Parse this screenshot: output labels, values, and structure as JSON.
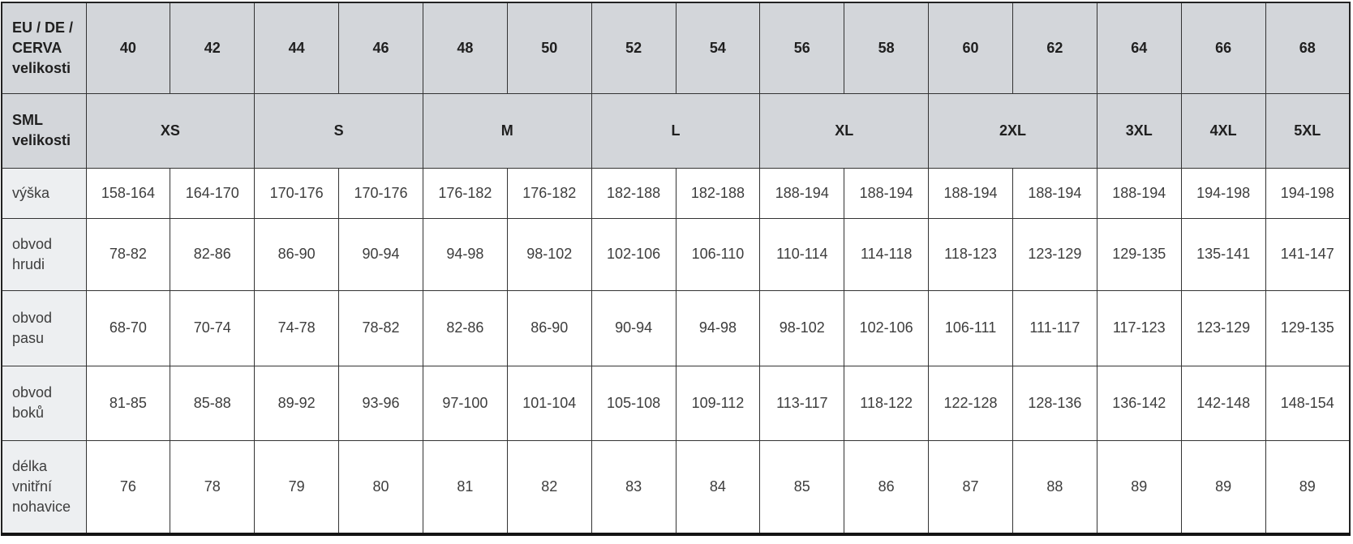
{
  "table": {
    "eu_header": {
      "label": "EU / DE / CERVA velikosti",
      "sizes": [
        "40",
        "42",
        "44",
        "46",
        "48",
        "50",
        "52",
        "54",
        "56",
        "58",
        "60",
        "62",
        "64",
        "66",
        "68"
      ]
    },
    "sml_header": {
      "label": "SML velikosti",
      "groups": [
        {
          "label": "XS",
          "span": 2
        },
        {
          "label": "S",
          "span": 2
        },
        {
          "label": "M",
          "span": 2
        },
        {
          "label": "L",
          "span": 2
        },
        {
          "label": "XL",
          "span": 2
        },
        {
          "label": "2XL",
          "span": 2
        },
        {
          "label": "3XL",
          "span": 1
        },
        {
          "label": "4XL",
          "span": 1
        },
        {
          "label": "5XL",
          "span": 1
        }
      ]
    },
    "rows": [
      {
        "key": "vyska",
        "label": "výška",
        "values": [
          "158-164",
          "164-170",
          "170-176",
          "170-176",
          "176-182",
          "176-182",
          "182-188",
          "182-188",
          "188-194",
          "188-194",
          "188-194",
          "188-194",
          "188-194",
          "194-198",
          "194-198"
        ]
      },
      {
        "key": "obvod-hrudi",
        "label": "obvod hrudi",
        "values": [
          "78-82",
          "82-86",
          "86-90",
          "90-94",
          "94-98",
          "98-102",
          "102-106",
          "106-110",
          "110-114",
          "114-118",
          "118-123",
          "123-129",
          "129-135",
          "135-141",
          "141-147"
        ]
      },
      {
        "key": "obvod-pasu",
        "label": "obvod pasu",
        "values": [
          "68-70",
          "70-74",
          "74-78",
          "78-82",
          "82-86",
          "86-90",
          "90-94",
          "94-98",
          "98-102",
          "102-106",
          "106-111",
          "111-117",
          "117-123",
          "123-129",
          "129-135"
        ]
      },
      {
        "key": "obvod-boku",
        "label": "obvod boků",
        "values": [
          "81-85",
          "85-88",
          "89-92",
          "93-96",
          "97-100",
          "101-104",
          "105-108",
          "109-112",
          "113-117",
          "118-122",
          "122-128",
          "128-136",
          "136-142",
          "142-148",
          "148-154"
        ]
      },
      {
        "key": "delka-vnitrni-nohavice",
        "label": "délka vnitřní nohavice",
        "values": [
          "76",
          "78",
          "79",
          "80",
          "81",
          "82",
          "83",
          "84",
          "85",
          "86",
          "87",
          "88",
          "89",
          "89",
          "89"
        ]
      }
    ]
  },
  "colors": {
    "header_bg": "#d3d6da",
    "row_label_bg": "#edeff1",
    "cell_bg": "#ffffff",
    "border": "#333333",
    "outer_bottom_border": "#141414",
    "header_text": "#1f1f1f",
    "cell_text": "#3d3d3d"
  }
}
